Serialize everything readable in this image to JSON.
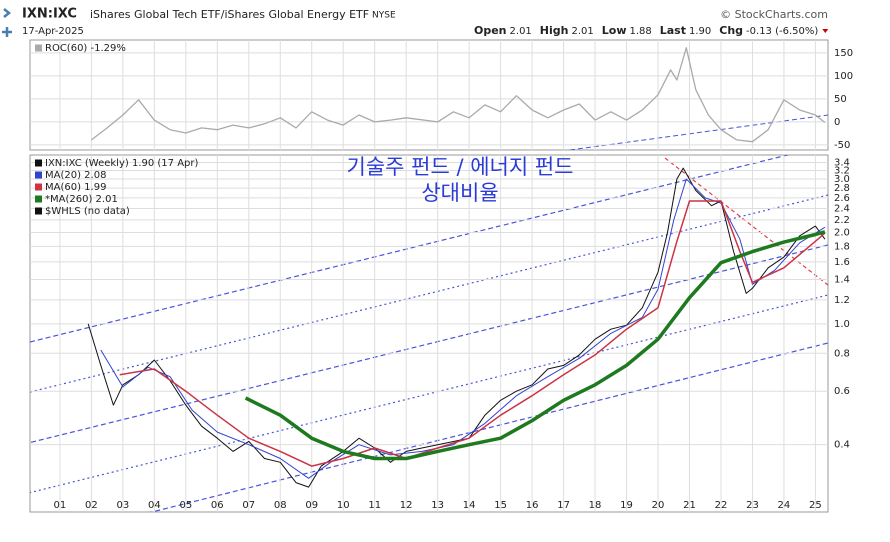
{
  "header": {
    "symbol": "IXN:IXC",
    "name": "iShares Global Tech ETF/iShares Global Energy ETF",
    "exchange": "NYSE",
    "copyright": "© StockCharts.com",
    "date": "17-Apr-2025",
    "quote": [
      {
        "label": "Open",
        "value": "2.01"
      },
      {
        "label": "High",
        "value": "2.01"
      },
      {
        "label": "Low",
        "value": "1.88"
      },
      {
        "label": "Last",
        "value": "1.90"
      },
      {
        "label": "Chg",
        "value": "-0.13 (-6.50%)"
      }
    ]
  },
  "chart_data": [
    {
      "type": "line",
      "xlim": [
        2000.05,
        2025.4
      ],
      "ylim": [
        -61,
        178
      ],
      "yticks": [
        150,
        100,
        50,
        0,
        -50
      ],
      "grid": true,
      "series": [
        {
          "name": "ROC(60) -1.29%",
          "color": "#aaaaaa",
          "x": [
            2002.0,
            2002.5,
            2003.0,
            2003.5,
            2004.0,
            2004.5,
            2005.0,
            2005.5,
            2006.0,
            2006.5,
            2007.0,
            2007.5,
            2008.0,
            2008.5,
            2009.0,
            2009.5,
            2010.0,
            2010.5,
            2011.0,
            2011.5,
            2012.0,
            2013.0,
            2013.5,
            2014.0,
            2014.5,
            2015.0,
            2015.5,
            2016.0,
            2016.5,
            2017.0,
            2017.5,
            2018.0,
            2018.5,
            2019.0,
            2019.5,
            2020.0,
            2020.4,
            2020.6,
            2020.9,
            2021.2,
            2021.6,
            2022.0,
            2022.5,
            2023.0,
            2023.5,
            2024.0,
            2024.5,
            2025.0,
            2025.3
          ],
          "values": [
            -39,
            -13,
            15,
            48,
            4,
            -17,
            -24,
            -13,
            -17,
            -7,
            -13,
            -4,
            9,
            -13,
            22,
            4,
            -7,
            15,
            0,
            4,
            9,
            0,
            22,
            9,
            37,
            22,
            57,
            26,
            9,
            26,
            39,
            4,
            22,
            4,
            26,
            59,
            113,
            91,
            161,
            70,
            15,
            -17,
            -39,
            -43,
            -17,
            48,
            26,
            15,
            -1.29
          ]
        }
      ]
    },
    {
      "type": "line",
      "log_scale": true,
      "xlim": [
        2000.05,
        2025.4
      ],
      "ylim": [
        0.24,
        3.6
      ],
      "grid": true,
      "yticks": [
        0.4,
        0.6,
        0.8,
        {
          "value": 1,
          "label": "1.0"
        },
        1.2,
        1.4,
        1.6,
        1.8,
        {
          "value": 2,
          "label": "2.0"
        },
        2.2,
        2.4,
        2.6,
        2.8,
        {
          "value": 3,
          "label": "3.0"
        },
        3.2,
        3.4
      ],
      "xticks": [
        {
          "value": 2001,
          "label": "01"
        },
        {
          "value": 2002,
          "label": "02"
        },
        {
          "value": 2003,
          "label": "03"
        },
        {
          "value": 2004,
          "label": "04"
        },
        {
          "value": 2005,
          "label": "05"
        },
        {
          "value": 2006,
          "label": "06"
        },
        {
          "value": 2007,
          "label": "07"
        },
        {
          "value": 2008,
          "label": "08"
        },
        {
          "value": 2009,
          "label": "09"
        },
        {
          "value": 2010,
          "label": "10"
        },
        {
          "value": 2011,
          "label": "11"
        },
        {
          "value": 2012,
          "label": "12"
        },
        {
          "value": 2013,
          "label": "13"
        },
        {
          "value": 2014,
          "label": "14"
        },
        {
          "value": 2015,
          "label": "15"
        },
        {
          "value": 2016,
          "label": "16"
        },
        {
          "value": 2017,
          "label": "17"
        },
        {
          "value": 2018,
          "label": "18"
        },
        {
          "value": 2019,
          "label": "19"
        },
        {
          "value": 2020,
          "label": "20"
        },
        {
          "value": 2021,
          "label": "21"
        },
        {
          "value": 2022,
          "label": "22"
        },
        {
          "value": 2023,
          "label": "23"
        },
        {
          "value": 2024,
          "label": "24"
        },
        {
          "value": 2025,
          "label": "25"
        }
      ],
      "annotations": [
        "기술주 펀드 / 에너지 펀드",
        "상대비율"
      ],
      "legend_extra": "$WHLS (no data)",
      "series": [
        {
          "name": "IXN:IXC (Weekly) 1.90 (17 Apr)",
          "color": "#111111",
          "width": 1,
          "x": [
            2001.9,
            2002.3,
            2002.7,
            2003.0,
            2003.5,
            2004.0,
            2004.5,
            2005.0,
            2005.5,
            2006.0,
            2006.5,
            2007.0,
            2007.5,
            2008.0,
            2008.5,
            2008.9,
            2009.3,
            2010.0,
            2010.5,
            2011.0,
            2011.5,
            2012.0,
            2012.5,
            2013.0,
            2014.0,
            2014.5,
            2015.0,
            2015.5,
            2016.0,
            2016.5,
            2017.0,
            2017.5,
            2018.0,
            2018.5,
            2019.0,
            2019.5,
            2020.0,
            2020.3,
            2020.6,
            2020.8,
            2021.2,
            2021.7,
            2022.0,
            2022.4,
            2022.8,
            2023.0,
            2023.5,
            2024.0,
            2024.5,
            2025.0,
            2025.3
          ],
          "values": [
            1.0,
            0.73,
            0.54,
            0.63,
            0.68,
            0.76,
            0.65,
            0.54,
            0.46,
            0.42,
            0.38,
            0.41,
            0.36,
            0.35,
            0.3,
            0.29,
            0.34,
            0.38,
            0.42,
            0.39,
            0.35,
            0.38,
            0.39,
            0.4,
            0.42,
            0.5,
            0.56,
            0.6,
            0.63,
            0.71,
            0.73,
            0.79,
            0.89,
            0.96,
            0.99,
            1.13,
            1.48,
            2.0,
            3.0,
            3.26,
            2.75,
            2.45,
            2.54,
            1.73,
            1.26,
            1.31,
            1.53,
            1.66,
            1.95,
            2.1,
            1.9
          ]
        },
        {
          "name": "MA(20) 2.08",
          "color": "#3344cc",
          "width": 1,
          "x": [
            2002.3,
            2003.0,
            2003.8,
            2004.5,
            2005.2,
            2006.0,
            2007.0,
            2008.0,
            2008.9,
            2009.6,
            2010.5,
            2011.5,
            2012.5,
            2013.5,
            2014.5,
            2015.5,
            2016.5,
            2017.5,
            2018.5,
            2019.5,
            2020.0,
            2020.5,
            2020.9,
            2021.5,
            2022.0,
            2022.6,
            2023.0,
            2023.7,
            2024.5,
            2025.3
          ],
          "values": [
            0.82,
            0.62,
            0.72,
            0.67,
            0.52,
            0.44,
            0.4,
            0.36,
            0.31,
            0.35,
            0.4,
            0.37,
            0.38,
            0.4,
            0.47,
            0.58,
            0.67,
            0.77,
            0.93,
            1.05,
            1.3,
            2.2,
            3.0,
            2.6,
            2.5,
            1.9,
            1.35,
            1.5,
            1.85,
            2.08
          ]
        },
        {
          "name": "MA(60) 1.99",
          "color": "#cc3344",
          "width": 1.5,
          "x": [
            2002.9,
            2004.0,
            2005.0,
            2006.0,
            2007.0,
            2008.0,
            2009.0,
            2010.0,
            2011.0,
            2012.0,
            2013.0,
            2014.0,
            2015.0,
            2016.0,
            2017.0,
            2018.0,
            2019.0,
            2020.0,
            2020.6,
            2021.0,
            2022.0,
            2022.6,
            2023.0,
            2024.0,
            2025.0,
            2025.3
          ],
          "values": [
            0.68,
            0.71,
            0.6,
            0.5,
            0.42,
            0.38,
            0.34,
            0.36,
            0.39,
            0.36,
            0.39,
            0.42,
            0.5,
            0.58,
            0.68,
            0.79,
            0.96,
            1.13,
            1.87,
            2.54,
            2.54,
            1.73,
            1.37,
            1.53,
            1.87,
            1.99
          ]
        },
        {
          "name": "*MA(260) 2.01",
          "color": "#1e7a1e",
          "width": 3.5,
          "x": [
            2006.9,
            2008.0,
            2009.0,
            2010.0,
            2011.0,
            2012.0,
            2013.0,
            2014.0,
            2015.0,
            2016.0,
            2017.0,
            2018.0,
            2019.0,
            2020.0,
            2021.0,
            2022.0,
            2023.0,
            2024.0,
            2025.0,
            2025.3
          ],
          "values": [
            0.57,
            0.5,
            0.42,
            0.38,
            0.36,
            0.36,
            0.38,
            0.4,
            0.42,
            0.48,
            0.56,
            0.63,
            0.73,
            0.89,
            1.22,
            1.59,
            1.73,
            1.86,
            1.97,
            2.01
          ]
        }
      ]
    }
  ]
}
